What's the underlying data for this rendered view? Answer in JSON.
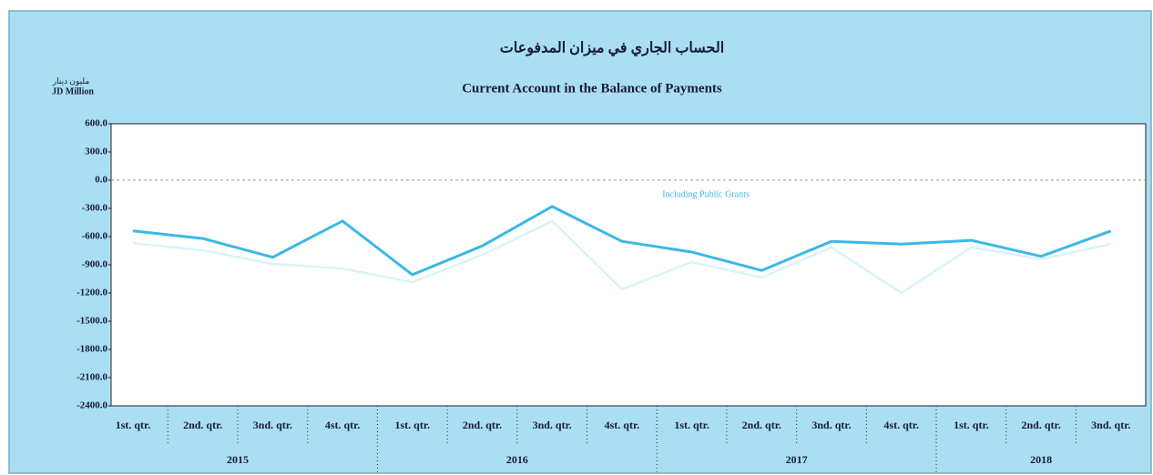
{
  "chart_data": {
    "type": "line",
    "title": "الحساب الجاري في ميزان المدفوعات",
    "subtitle": "Current Account in the Balance of Payments",
    "y_unit_arabic": "مليون دينار",
    "y_label": "JD Million",
    "categories": [
      "1st. qtr.",
      "2nd. qtr.",
      "3nd. qtr.",
      "4st. qtr.",
      "1st. qtr.",
      "2nd. qtr.",
      "3nd. qtr.",
      "4st. qtr.",
      "1st. qtr.",
      "2nd. qtr.",
      "3nd. qtr.",
      "4st. qtr.",
      "1st. qtr.",
      "2nd. qtr.",
      "3nd. qtr."
    ],
    "years": [
      "2015",
      "2016",
      "2017",
      "2018"
    ],
    "series": [
      {
        "name": "Including Public Grants",
        "color": "#3bb8e6",
        "values": [
          -540,
          -620,
          -820,
          -435,
          -1005,
          -700,
          -280,
          -650,
          -765,
          -960,
          -650,
          -680,
          -640,
          -810,
          -540
        ]
      },
      {
        "color": "#d8f3fb",
        "values": [
          -670,
          -745,
          -890,
          -940,
          -1085,
          -795,
          -435,
          -1160,
          -870,
          -1035,
          -715,
          -1200,
          -715,
          -840,
          -680
        ]
      }
    ],
    "ylim": [
      -2400,
      600
    ],
    "yticks": [
      {
        "value": 600,
        "label": "600.0"
      },
      {
        "value": 300,
        "label": "300.0"
      },
      {
        "value": 0,
        "label": "0.0"
      },
      {
        "value": -300,
        "label": "-300.0"
      },
      {
        "value": -600,
        "label": "-600.0"
      },
      {
        "value": -900,
        "label": "-900.0"
      },
      {
        "value": -1200,
        "label": "-1200.0"
      },
      {
        "value": -1500,
        "label": "-1500.0"
      },
      {
        "value": -1800,
        "label": "-1800.0"
      },
      {
        "value": -2100,
        "label": "-2100.0"
      },
      {
        "value": -2400,
        "label": "-2400.0"
      }
    ]
  }
}
